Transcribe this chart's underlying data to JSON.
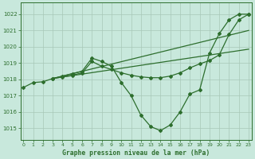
{
  "background_color": "#c8e8dc",
  "grid_color": "#a8c8b8",
  "line_color": "#2d6e2d",
  "title": "Graphe pression niveau de la mer (hPa)",
  "xlim": [
    -0.3,
    23.3
  ],
  "ylim": [
    1014.3,
    1022.7
  ],
  "yticks": [
    1015,
    1016,
    1017,
    1018,
    1019,
    1020,
    1021,
    1022
  ],
  "xticks": [
    0,
    1,
    2,
    3,
    4,
    5,
    6,
    7,
    8,
    9,
    10,
    11,
    12,
    13,
    14,
    15,
    16,
    17,
    18,
    19,
    20,
    21,
    22,
    23
  ],
  "line1_x": [
    0,
    1,
    2,
    3,
    4,
    5,
    6,
    7,
    8,
    9,
    10,
    11,
    12,
    13,
    14,
    15,
    16,
    17,
    18,
    19,
    20,
    21,
    22,
    23
  ],
  "line1_y": [
    1017.5,
    1017.8,
    1017.85,
    1018.05,
    1018.2,
    1018.35,
    1018.5,
    1019.3,
    1019.1,
    1018.8,
    1017.8,
    1017.0,
    1015.8,
    1015.1,
    1014.85,
    1015.2,
    1016.0,
    1017.1,
    1017.35,
    1019.6,
    1020.8,
    1021.65,
    1022.0,
    1022.0
  ],
  "line2_x": [
    3,
    4,
    5,
    6,
    7,
    8,
    9,
    10,
    11,
    12,
    13,
    14,
    15,
    16,
    17,
    18,
    19,
    20,
    21,
    22,
    23
  ],
  "line2_y": [
    1018.05,
    1018.15,
    1018.25,
    1018.4,
    1019.1,
    1018.8,
    1018.6,
    1018.4,
    1018.25,
    1018.15,
    1018.1,
    1018.1,
    1018.2,
    1018.4,
    1018.7,
    1018.95,
    1019.15,
    1019.5,
    1020.75,
    1021.65,
    1022.0
  ],
  "line3_x": [
    3,
    23
  ],
  "line3_y": [
    1018.05,
    1021.0
  ],
  "line4_x": [
    3,
    23
  ],
  "line4_y": [
    1018.05,
    1019.85
  ]
}
